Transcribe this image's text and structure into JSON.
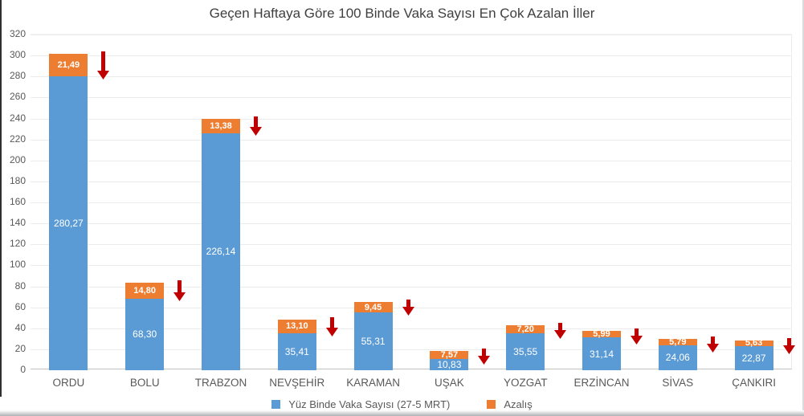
{
  "chart_data": {
    "type": "bar",
    "stacked": true,
    "title": "Geçen Haftaya Göre 100 Binde Vaka Sayısı En Çok Azalan İller",
    "categories": [
      "ORDU",
      "BOLU",
      "TRABZON",
      "NEVŞEHİR",
      "KARAMAN",
      "UŞAK",
      "YOZGAT",
      "ERZİNCAN",
      "SİVAS",
      "ÇANKIRI"
    ],
    "series": [
      {
        "name": "Yüz Binde Vaka Sayısı (27-5 MRT)",
        "color": "#5b9bd5",
        "values": [
          280.27,
          68.3,
          226.14,
          35.41,
          55.31,
          10.83,
          35.55,
          31.14,
          24.06,
          22.87
        ],
        "labels": [
          "280,27",
          "68,30",
          "226,14",
          "35,41",
          "55,31",
          "10,83",
          "35,55",
          "31,14",
          "24,06",
          "22,87"
        ]
      },
      {
        "name": "Azalış",
        "color": "#ed7d31",
        "values": [
          21.49,
          14.8,
          13.38,
          13.1,
          9.45,
          7.57,
          7.2,
          5.99,
          5.79,
          5.63
        ],
        "labels": [
          "21,49",
          "14,80",
          "13,38",
          "13,10",
          "9,45",
          "7,57",
          "7,20",
          "5,99",
          "5,79",
          "5,63"
        ]
      }
    ],
    "ylim": [
      0,
      320
    ],
    "ytick_step": 20,
    "grid": true,
    "legend_position": "bottom",
    "annotation": {
      "shape": "down-arrow",
      "color": "#c00000",
      "meaning": "decrease marker beside every bar"
    }
  },
  "colors": {
    "bar_blue": "#5b9bd5",
    "bar_orange": "#ed7d31",
    "arrow_red": "#c00000",
    "grid": "#ececec",
    "axis_text": "#595959",
    "title_text": "#3f3f3f"
  }
}
